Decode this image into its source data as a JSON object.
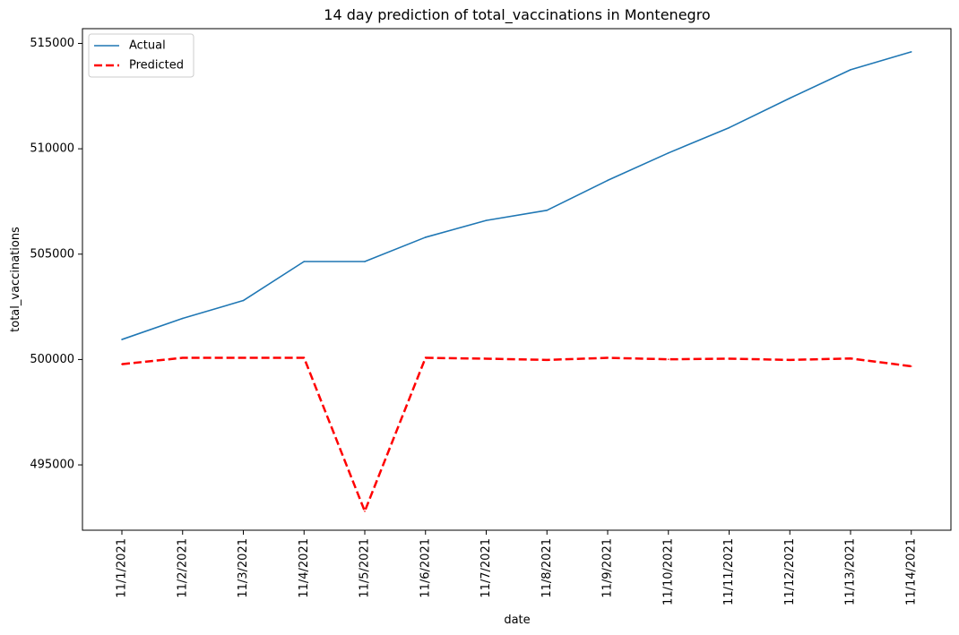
{
  "chart_data": {
    "type": "line",
    "title": "14 day prediction of total_vaccinations in Montenegro",
    "xlabel": "date",
    "ylabel": "total_vaccinations",
    "categories": [
      "11/1/2021",
      "11/2/2021",
      "11/3/2021",
      "11/4/2021",
      "11/5/2021",
      "11/6/2021",
      "11/7/2021",
      "11/8/2021",
      "11/9/2021",
      "11/10/2021",
      "11/11/2021",
      "11/12/2021",
      "11/13/2021",
      "11/14/2021"
    ],
    "yticks": [
      495000,
      500000,
      505000,
      510000,
      515000
    ],
    "ytick_labels": [
      "495000",
      "500000",
      "505000",
      "510000",
      "515000"
    ],
    "ylim": [
      491900,
      515700
    ],
    "grid": false,
    "legend_placement": "top-left",
    "series": [
      {
        "name": "Actual",
        "color": "#1f77b4",
        "style": "solid",
        "values": [
          500950,
          501950,
          502800,
          504650,
          504650,
          505800,
          506600,
          507080,
          508500,
          509800,
          511000,
          512400,
          513750,
          514600
        ]
      },
      {
        "name": "Predicted",
        "color": "#ff0000",
        "style": "dashed",
        "values": [
          499780,
          500080,
          500080,
          500080,
          492800,
          500080,
          500040,
          499980,
          500080,
          500010,
          500040,
          499980,
          500050,
          499680
        ]
      }
    ]
  }
}
